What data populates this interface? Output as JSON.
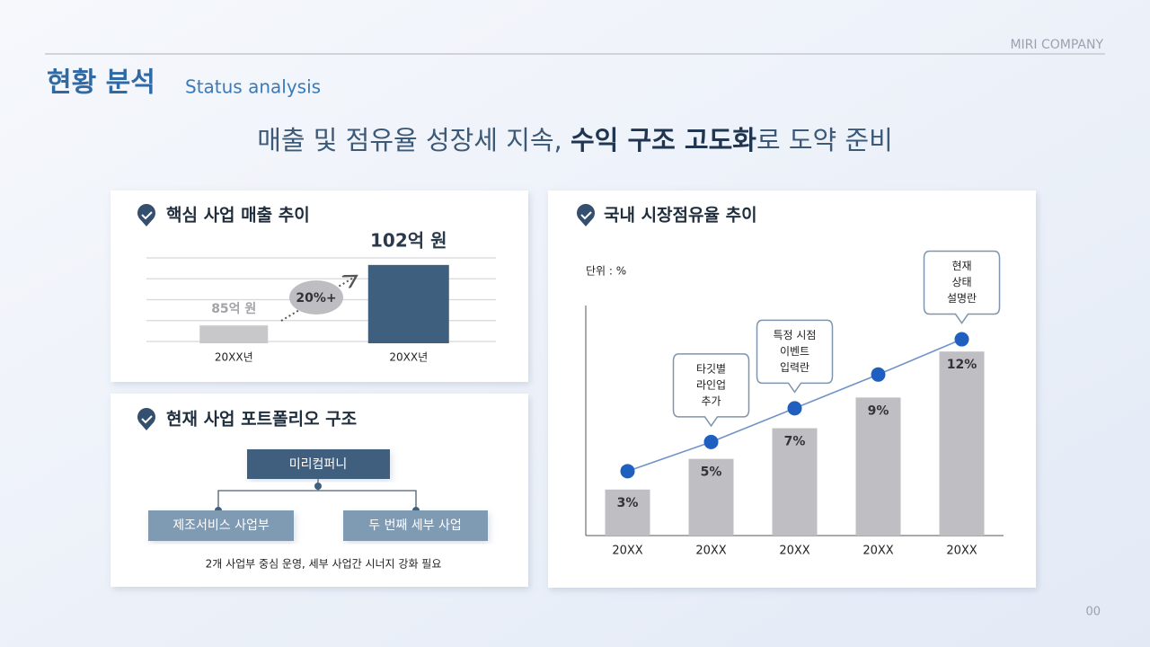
{
  "header": {
    "company": "MIRI COMPANY",
    "title": "현황 분석",
    "subtitle": "Status analysis",
    "page": "00"
  },
  "headline": {
    "before": "매출 및 점유율 성장세 지속, ",
    "bold": "수익 구조 고도화",
    "after": "로 도약 준비"
  },
  "chart_data": [
    {
      "type": "bar",
      "title": "핵심 사업 매출 추이",
      "categories": [
        "20XX년",
        "20XX년"
      ],
      "values": [
        85,
        102
      ],
      "value_labels": [
        "85억 원",
        "102억 원"
      ],
      "colors": [
        "#c8c8cb",
        "#3f5f7f"
      ],
      "annotation": "20%+",
      "ylim": [
        80,
        106
      ],
      "grid": true
    },
    {
      "type": "bar-line",
      "title": "국내 시장점유율 추이",
      "unit": "단위 : %",
      "categories": [
        "20XX",
        "20XX",
        "20XX",
        "20XX",
        "20XX"
      ],
      "series": [
        {
          "type": "bar",
          "color": "#bfbfc3",
          "values": [
            3,
            5,
            7,
            9,
            12
          ],
          "value_labels": [
            "3%",
            "5%",
            "7%",
            "9%",
            "12%"
          ]
        },
        {
          "type": "line",
          "color": "#1f5fbf",
          "values": [
            4.2,
            6.1,
            8.3,
            10.5,
            12.8
          ]
        }
      ],
      "callouts": [
        null,
        [
          "타깃별",
          "라인업",
          "추가"
        ],
        [
          "특정 시점",
          "이벤트",
          "입력란"
        ],
        null,
        [
          "현재",
          "상태",
          "설명란"
        ]
      ],
      "ylim": [
        0,
        15
      ]
    }
  ],
  "portfolio": {
    "title": "현재 사업 포트폴리오 구조",
    "root": "미리컴퍼니",
    "children": [
      "제조서비스 사업부",
      "두 번째 세부 사업"
    ],
    "note": "2개 사업부 중심 운영, 세부 사업간 시너지 강화 필요"
  }
}
